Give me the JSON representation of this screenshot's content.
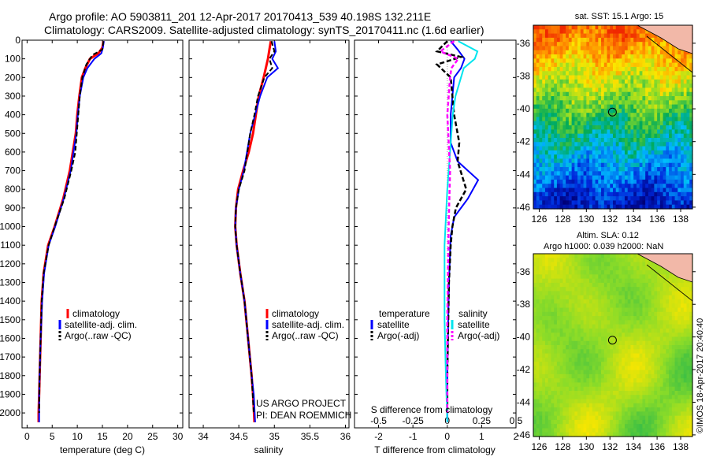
{
  "header": {
    "line1": "Argo profile: AO 5903811_201 12-Apr-2017 20170413_539 40.198S 132.211E",
    "line2": "Climatology: CARS2009. Satellite-adjusted climatology: synTS_20170411.nc (1.6d earlier)"
  },
  "credits": {
    "project": "US ARGO PROJECT",
    "pi": "PI: DEAN ROEMMICH",
    "watermark": "©IMOS 18-Apr-2017 20:40:40"
  },
  "colors": {
    "climatology": "#ff0000",
    "satellite": "#0000ff",
    "argo": "#000000",
    "sal_satellite": "#00e5ee",
    "sal_argo": "#ff00ff"
  },
  "chart_data": [
    {
      "type": "line",
      "name": "temperature-profile",
      "xlabel": "temperature (deg C)",
      "xlim": [
        -1,
        31
      ],
      "ylim": [
        2080,
        0
      ],
      "xticks": [
        "0",
        "5",
        "10",
        "15",
        "20",
        "25",
        "30"
      ],
      "xtick_values": [
        0,
        5,
        10,
        15,
        20,
        25,
        30
      ],
      "yticks": [
        "0",
        "100",
        "200",
        "300",
        "400",
        "500",
        "600",
        "700",
        "800",
        "900",
        "1000",
        "1100",
        "1200",
        "1300",
        "1400",
        "1500",
        "1600",
        "1700",
        "1800",
        "1900",
        "2000"
      ],
      "ytick_values": [
        0,
        100,
        200,
        300,
        400,
        500,
        600,
        700,
        800,
        900,
        1000,
        1100,
        1200,
        1300,
        1400,
        1500,
        1600,
        1700,
        1800,
        1900,
        2000
      ],
      "legend": [
        "climatology",
        "satellite-adj. clim.",
        "Argo(..raw -QC)"
      ],
      "series": [
        {
          "name": "climatology",
          "x": [
            15.2,
            15.0,
            14.2,
            12.5,
            11.6,
            10.9,
            10.4,
            10.0,
            9.7,
            8.5,
            7.2,
            5.5,
            4.2,
            3.3,
            2.9,
            2.7,
            2.5,
            2.4,
            2.3,
            2.3
          ],
          "y": [
            5,
            40,
            70,
            100,
            150,
            200,
            300,
            400,
            500,
            700,
            850,
            1000,
            1100,
            1250,
            1400,
            1600,
            1800,
            1900,
            2000,
            2050
          ]
        },
        {
          "name": "satellite-adj. clim.",
          "x": [
            15.3,
            15.1,
            14.8,
            13.4,
            12.0,
            11.2,
            10.5,
            10.1,
            9.8,
            8.7,
            7.3,
            5.6,
            4.3,
            3.4,
            3.0,
            2.7,
            2.5,
            2.4,
            2.4
          ],
          "y": [
            5,
            40,
            70,
            100,
            150,
            200,
            300,
            400,
            500,
            700,
            850,
            1000,
            1100,
            1250,
            1400,
            1600,
            1800,
            1900,
            2050
          ]
        },
        {
          "name": "Argo(..raw -QC)",
          "x": [
            15.2,
            15.0,
            13.0,
            11.8,
            11.0,
            10.5,
            10.2,
            9.9,
            9.6,
            8.8,
            7.4,
            5.5,
            4.3,
            3.3,
            2.9,
            2.7,
            2.5,
            2.4
          ],
          "y": [
            5,
            50,
            80,
            130,
            200,
            300,
            400,
            500,
            600,
            700,
            850,
            1000,
            1100,
            1250,
            1400,
            1600,
            1800,
            2000
          ]
        }
      ]
    },
    {
      "type": "line",
      "name": "salinity-profile",
      "xlabel": "salinity",
      "xlim": [
        33.8,
        36.05
      ],
      "ylim": [
        2080,
        0
      ],
      "xticks": [
        "34",
        "34.5",
        "35",
        "35.5",
        "36"
      ],
      "xtick_values": [
        34,
        34.5,
        35,
        35.5,
        36
      ],
      "legend": [
        "climatology",
        "satellite-adj. clim.",
        "Argo(..raw -QC)"
      ],
      "series": [
        {
          "name": "climatology",
          "x": [
            34.95,
            34.93,
            34.91,
            34.85,
            34.78,
            34.74,
            34.7,
            34.64,
            34.56,
            34.49,
            34.46,
            34.45,
            34.47,
            34.52,
            34.58,
            34.63,
            34.68,
            34.7,
            34.72
          ],
          "y": [
            5,
            50,
            100,
            200,
            300,
            400,
            500,
            600,
            700,
            800,
            900,
            1000,
            1100,
            1250,
            1400,
            1600,
            1800,
            1900,
            2050
          ]
        },
        {
          "name": "satellite-adj. clim.",
          "x": [
            35.0,
            35.02,
            34.97,
            35.05,
            34.9,
            34.8,
            34.73,
            34.66,
            34.57,
            34.5,
            34.46,
            34.45,
            34.47,
            34.52,
            34.58,
            34.63,
            34.68,
            34.71,
            34.73
          ],
          "y": [
            5,
            60,
            100,
            150,
            200,
            300,
            400,
            500,
            700,
            800,
            900,
            1000,
            1100,
            1250,
            1400,
            1600,
            1800,
            1900,
            2050
          ]
        },
        {
          "name": "Argo(..raw -QC)",
          "x": [
            34.96,
            35.0,
            34.93,
            34.97,
            34.86,
            34.77,
            34.72,
            34.66,
            34.58,
            34.5,
            34.46,
            34.45,
            34.47,
            34.52,
            34.58,
            34.63,
            34.68,
            34.71
          ],
          "y": [
            5,
            60,
            100,
            150,
            200,
            300,
            400,
            500,
            700,
            800,
            900,
            1000,
            1100,
            1250,
            1400,
            1600,
            1800,
            2000
          ]
        }
      ]
    },
    {
      "type": "line",
      "name": "difference-profile",
      "xlabel": "T difference from climatology",
      "xlabel_top": "S difference from climatology",
      "xlim": [
        -2.7,
        2.0
      ],
      "ylim": [
        2080,
        0
      ],
      "xticks": [
        "-2",
        "-1",
        "0",
        "1",
        "2"
      ],
      "xtick_values": [
        -2,
        -1,
        0,
        1,
        2
      ],
      "sticks": [
        "-0.5",
        "-0.25",
        "0",
        "0.25",
        "0.5"
      ],
      "stick_values": [
        -0.5,
        -0.25,
        0,
        0.25,
        0.5
      ],
      "legend_temperature_title": "temperature",
      "legend_salinity_title": "salinity",
      "legend_temperature": [
        "satellite",
        "Argo(-adj)"
      ],
      "legend_salinity": [
        "satellite",
        "Argo(-adj)"
      ],
      "series": [
        {
          "name": "T satellite",
          "x": [
            0.1,
            0.3,
            0.5,
            0.4,
            0.2,
            0.15,
            0.1,
            0.1,
            0.3,
            0.9,
            0.6,
            0.2,
            0.1,
            0.05,
            0.02,
            0.0,
            0.0
          ],
          "y": [
            5,
            50,
            100,
            150,
            200,
            300,
            400,
            550,
            650,
            750,
            850,
            950,
            1050,
            1300,
            1600,
            1800,
            2050
          ]
        },
        {
          "name": "T Argo(-adj)",
          "x": [
            0.0,
            -0.3,
            0.4,
            -0.3,
            0.1,
            0.15,
            0.2,
            0.35,
            0.3,
            0.55,
            0.25,
            0.15,
            0.1,
            0.05,
            0.02,
            0.0,
            0.0
          ],
          "y": [
            5,
            60,
            90,
            130,
            200,
            300,
            400,
            550,
            650,
            800,
            900,
            1000,
            1100,
            1300,
            1600,
            1800,
            2000
          ]
        },
        {
          "name": "S satellite",
          "x": [
            0.08,
            0.22,
            0.2,
            0.12,
            0.1,
            0.06,
            0.04,
            0.02,
            0.0,
            -0.02,
            -0.02,
            -0.01,
            0.0
          ],
          "y": [
            5,
            60,
            100,
            150,
            200,
            300,
            400,
            600,
            800,
            1100,
            1500,
            1800,
            2050
          ]
        },
        {
          "name": "S Argo(-adj)",
          "x": [
            0.05,
            -0.05,
            0.08,
            0.03,
            0.02,
            0.0,
            0.02,
            0.01,
            0.0,
            0.0
          ],
          "y": [
            5,
            60,
            100,
            150,
            200,
            400,
            700,
            1000,
            1500,
            2000
          ]
        }
      ]
    },
    {
      "type": "heatmap",
      "name": "sst-map",
      "title": "sat. SST: 15.1  Argo: 15",
      "xlim": [
        125.5,
        139
      ],
      "ylim": [
        -46.1,
        -34.9
      ],
      "xticks": [
        "126",
        "128",
        "130",
        "132",
        "134",
        "136",
        "138"
      ],
      "xtick_values": [
        126,
        128,
        130,
        132,
        134,
        136,
        138
      ],
      "yticks": [
        "-36",
        "-38",
        "-40",
        "-42",
        "-44",
        "-46"
      ],
      "ytick_values": [
        -36,
        -38,
        -40,
        -42,
        -44,
        -46
      ],
      "marker": {
        "lon": 132.211,
        "lat": -40.198
      }
    },
    {
      "type": "heatmap",
      "name": "sla-map",
      "title_line1": "Altim. SLA: 0.12",
      "title_line2": "Argo h1000: 0.039 h2000: NaN",
      "xlim": [
        125.5,
        139
      ],
      "ylim": [
        -46.1,
        -34.9
      ],
      "xticks": [
        "126",
        "128",
        "130",
        "132",
        "134",
        "136",
        "138"
      ],
      "xtick_values": [
        126,
        128,
        130,
        132,
        134,
        136,
        138
      ],
      "yticks": [
        "-36",
        "-38",
        "-40",
        "-42",
        "-44",
        "-46"
      ],
      "ytick_values": [
        -36,
        -38,
        -40,
        -42,
        -44,
        -46
      ],
      "marker": {
        "lon": 132.211,
        "lat": -40.198
      }
    }
  ]
}
